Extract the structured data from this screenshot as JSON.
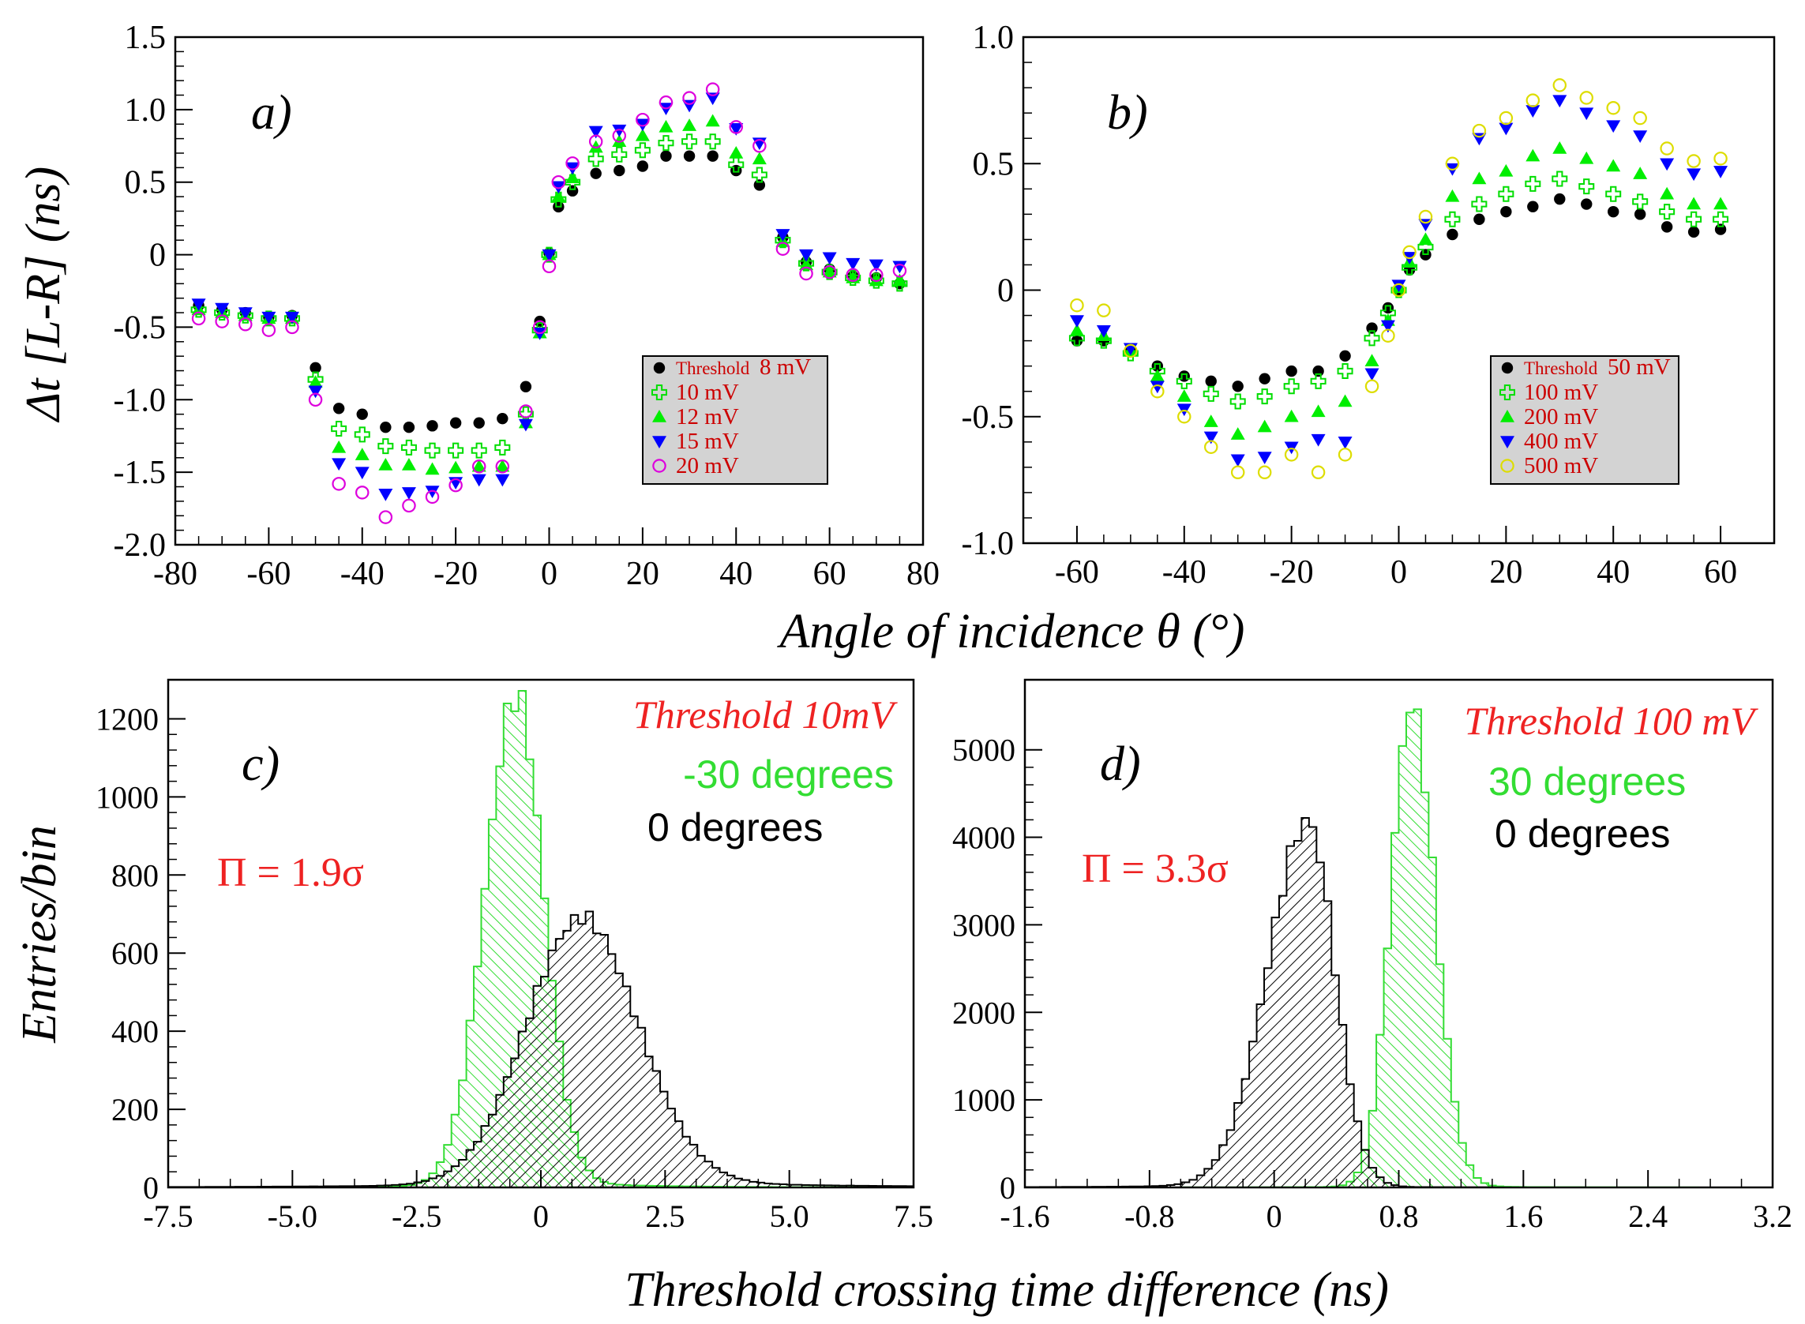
{
  "figure": {
    "xlabel_top": "Angle of incidence θ (°)",
    "ylabel_top": "Δt [L-R]  (ns)",
    "xlabel_bottom": "Threshold crossing time difference (ns)",
    "ylabel_bottom": "Entries/bin"
  },
  "chart_data": [
    {
      "panel": "a)",
      "type": "scatter",
      "xlim": [
        -80,
        80
      ],
      "ylim": [
        -2.0,
        1.5
      ],
      "xticks": [
        -80,
        -60,
        -40,
        -20,
        0,
        20,
        40,
        60,
        80
      ],
      "yticks": [
        -2.0,
        -1.5,
        -1.0,
        -0.5,
        0,
        0.5,
        1.0,
        1.5
      ],
      "legend_title": "Threshold",
      "legend_placement": "bottom-right",
      "series": [
        {
          "name": "8 mV",
          "marker": "circle-filled",
          "color": "#000000",
          "x": [
            -75,
            -70,
            -65,
            -60,
            -55,
            -50,
            -45,
            -40,
            -35,
            -30,
            -25,
            -20,
            -15,
            -10,
            -5,
            -2,
            0,
            2,
            5,
            10,
            15,
            20,
            25,
            30,
            35,
            40,
            45,
            50,
            55,
            60,
            65,
            70,
            75
          ],
          "y": [
            -0.35,
            -0.38,
            -0.4,
            -0.43,
            -0.42,
            -0.78,
            -1.06,
            -1.1,
            -1.19,
            -1.19,
            -1.18,
            -1.16,
            -1.16,
            -1.13,
            -0.91,
            -0.46,
            0.01,
            0.33,
            0.44,
            0.56,
            0.58,
            0.61,
            0.68,
            0.68,
            0.68,
            0.58,
            0.48,
            0.12,
            -0.05,
            -0.1,
            -0.15,
            -0.16,
            -0.2
          ]
        },
        {
          "name": "10 mV",
          "marker": "plus-open",
          "color": "#00dd00",
          "x": [
            -75,
            -70,
            -65,
            -60,
            -55,
            -50,
            -45,
            -40,
            -35,
            -30,
            -25,
            -20,
            -15,
            -10,
            -5,
            -2,
            0,
            2,
            5,
            10,
            15,
            20,
            25,
            30,
            35,
            40,
            45,
            50,
            55,
            60,
            65,
            70,
            75
          ],
          "y": [
            -0.38,
            -0.4,
            -0.42,
            -0.44,
            -0.44,
            -0.86,
            -1.2,
            -1.24,
            -1.32,
            -1.33,
            -1.35,
            -1.35,
            -1.35,
            -1.33,
            -1.1,
            -0.52,
            0.0,
            0.38,
            0.5,
            0.66,
            0.69,
            0.72,
            0.77,
            0.78,
            0.78,
            0.62,
            0.55,
            0.1,
            -0.06,
            -0.12,
            -0.16,
            -0.18,
            -0.2
          ]
        },
        {
          "name": "12 mV",
          "marker": "triangle-up",
          "color": "#00ee00",
          "x": [
            -75,
            -70,
            -65,
            -60,
            -55,
            -50,
            -45,
            -40,
            -35,
            -30,
            -25,
            -20,
            -15,
            -10,
            -5,
            -2,
            0,
            2,
            5,
            10,
            15,
            20,
            25,
            30,
            35,
            40,
            45,
            50,
            55,
            60,
            65,
            70,
            75
          ],
          "y": [
            -0.38,
            -0.4,
            -0.42,
            -0.44,
            -0.44,
            -0.88,
            -1.33,
            -1.38,
            -1.45,
            -1.45,
            -1.48,
            -1.47,
            -1.46,
            -1.46,
            -1.16,
            -0.54,
            0.0,
            0.4,
            0.53,
            0.74,
            0.78,
            0.82,
            0.88,
            0.89,
            0.92,
            0.7,
            0.66,
            0.09,
            -0.07,
            -0.12,
            -0.16,
            -0.18,
            -0.18
          ]
        },
        {
          "name": "15 mV",
          "marker": "triangle-down",
          "color": "#0000ff",
          "x": [
            -75,
            -70,
            -65,
            -60,
            -55,
            -50,
            -45,
            -40,
            -35,
            -30,
            -25,
            -20,
            -15,
            -10,
            -5,
            -2,
            0,
            2,
            5,
            10,
            15,
            20,
            25,
            30,
            35,
            40,
            45,
            50,
            55,
            60,
            65,
            70,
            75
          ],
          "y": [
            -0.34,
            -0.37,
            -0.4,
            -0.43,
            -0.43,
            -0.94,
            -1.44,
            -1.5,
            -1.65,
            -1.64,
            -1.63,
            -1.57,
            -1.55,
            -1.55,
            -1.17,
            -0.54,
            0.0,
            0.47,
            0.6,
            0.85,
            0.86,
            0.9,
            1.01,
            1.03,
            1.08,
            0.87,
            0.77,
            0.14,
            0.0,
            -0.02,
            -0.06,
            -0.07,
            -0.08
          ]
        },
        {
          "name": "20 mV",
          "marker": "circle-open",
          "color": "#dd00dd",
          "x": [
            -75,
            -70,
            -65,
            -60,
            -55,
            -50,
            -45,
            -40,
            -35,
            -30,
            -25,
            -20,
            -15,
            -10,
            -5,
            -2,
            0,
            2,
            5,
            10,
            15,
            20,
            25,
            30,
            35,
            40,
            45,
            50,
            55,
            60,
            65,
            70,
            75
          ],
          "y": [
            -0.44,
            -0.46,
            -0.48,
            -0.52,
            -0.5,
            -1.0,
            -1.58,
            -1.64,
            -1.81,
            -1.73,
            -1.67,
            -1.59,
            -1.46,
            -1.46,
            -1.08,
            -0.5,
            -0.08,
            0.5,
            0.63,
            0.78,
            0.82,
            0.93,
            1.05,
            1.08,
            1.14,
            0.88,
            0.75,
            0.04,
            -0.13,
            -0.12,
            -0.14,
            -0.14,
            -0.11
          ]
        }
      ]
    },
    {
      "panel": "b)",
      "type": "scatter",
      "xlim": [
        -70,
        70
      ],
      "ylim": [
        -1.0,
        1.0
      ],
      "xticks": [
        -60,
        -40,
        -20,
        0,
        20,
        40,
        60
      ],
      "yticks": [
        -1.0,
        -0.5,
        0,
        0.5,
        1.0
      ],
      "legend_title": "Threshold",
      "legend_placement": "bottom-right",
      "series": [
        {
          "name": "50 mV",
          "marker": "circle-filled",
          "color": "#000000",
          "x": [
            -60,
            -55,
            -50,
            -45,
            -40,
            -35,
            -30,
            -25,
            -20,
            -15,
            -10,
            -5,
            -2,
            0,
            2,
            5,
            10,
            15,
            20,
            25,
            30,
            35,
            40,
            45,
            50,
            55,
            60
          ],
          "y": [
            -0.2,
            -0.2,
            -0.24,
            -0.3,
            -0.34,
            -0.36,
            -0.38,
            -0.35,
            -0.32,
            -0.32,
            -0.26,
            -0.15,
            -0.07,
            0.0,
            0.08,
            0.14,
            0.22,
            0.28,
            0.31,
            0.33,
            0.36,
            0.34,
            0.31,
            0.3,
            0.25,
            0.23,
            0.24
          ]
        },
        {
          "name": "100 mV",
          "marker": "plus-open",
          "color": "#00dd00",
          "x": [
            -60,
            -55,
            -50,
            -45,
            -40,
            -35,
            -30,
            -25,
            -20,
            -15,
            -10,
            -5,
            -2,
            0,
            2,
            5,
            10,
            15,
            20,
            25,
            30,
            35,
            40,
            45,
            50,
            55,
            60
          ],
          "y": [
            -0.19,
            -0.2,
            -0.25,
            -0.32,
            -0.36,
            -0.41,
            -0.44,
            -0.42,
            -0.38,
            -0.36,
            -0.32,
            -0.19,
            -0.09,
            0.0,
            0.09,
            0.17,
            0.28,
            0.34,
            0.38,
            0.42,
            0.44,
            0.41,
            0.38,
            0.35,
            0.31,
            0.28,
            0.28
          ]
        },
        {
          "name": "200 mV",
          "marker": "triangle-up",
          "color": "#00ee00",
          "x": [
            -60,
            -55,
            -50,
            -45,
            -40,
            -35,
            -30,
            -25,
            -20,
            -15,
            -10,
            -5,
            -2,
            0,
            2,
            5,
            10,
            15,
            20,
            25,
            30,
            35,
            40,
            45,
            50,
            55,
            60
          ],
          "y": [
            -0.16,
            -0.18,
            -0.24,
            -0.34,
            -0.42,
            -0.52,
            -0.57,
            -0.54,
            -0.5,
            -0.48,
            -0.44,
            -0.28,
            -0.12,
            0.01,
            0.11,
            0.2,
            0.37,
            0.44,
            0.47,
            0.53,
            0.56,
            0.52,
            0.49,
            0.46,
            0.38,
            0.34,
            0.34
          ]
        },
        {
          "name": "400 mV",
          "marker": "triangle-down",
          "color": "#0000ff",
          "x": [
            -60,
            -55,
            -50,
            -45,
            -40,
            -35,
            -30,
            -25,
            -20,
            -15,
            -10,
            -5,
            -2,
            0,
            2,
            5,
            10,
            15,
            20,
            25,
            30,
            35,
            40,
            45,
            50,
            55,
            60
          ],
          "y": [
            -0.12,
            -0.16,
            -0.23,
            -0.38,
            -0.47,
            -0.58,
            -0.67,
            -0.66,
            -0.62,
            -0.59,
            -0.6,
            -0.33,
            -0.14,
            0.02,
            0.13,
            0.26,
            0.48,
            0.6,
            0.64,
            0.71,
            0.75,
            0.7,
            0.65,
            0.61,
            0.5,
            0.46,
            0.47
          ]
        },
        {
          "name": "500 mV",
          "marker": "circle-open",
          "color": "#dddd00",
          "x": [
            -60,
            -55,
            -50,
            -45,
            -40,
            -35,
            -30,
            -25,
            -20,
            -15,
            -10,
            -5,
            -2,
            0,
            2,
            5,
            10,
            15,
            20,
            25,
            30,
            35,
            40,
            45,
            50,
            55,
            60
          ],
          "y": [
            -0.06,
            -0.08,
            -0.24,
            -0.4,
            -0.5,
            -0.62,
            -0.72,
            -0.72,
            -0.65,
            -0.72,
            -0.65,
            -0.38,
            -0.18,
            0.0,
            0.15,
            0.29,
            0.5,
            0.63,
            0.68,
            0.75,
            0.81,
            0.76,
            0.72,
            0.68,
            0.56,
            0.51,
            0.52
          ]
        }
      ]
    },
    {
      "panel": "c)",
      "type": "histogram",
      "xlim": [
        -7.5,
        7.5
      ],
      "ylim": [
        0,
        1300
      ],
      "xticks": [
        -7.5,
        -5.0,
        -2.5,
        0,
        2.5,
        5.0,
        7.5
      ],
      "yticks": [
        0,
        200,
        400,
        600,
        800,
        1000,
        1200
      ],
      "threshold": "Threshold 10mV",
      "separation": "Π = 1.9σ",
      "series": [
        {
          "name": "-30 degrees",
          "color": "#33dd33",
          "peak_x": -0.5,
          "peak_y": 1250,
          "sigma_left": 0.62,
          "sigma_right": 0.55,
          "tail_left": 8,
          "tail_right": 20
        },
        {
          "name": "0 degrees",
          "color": "#000000",
          "peak_x": 0.8,
          "peak_y": 675,
          "sigma_left": 1.1,
          "sigma_right": 1.15,
          "tail_left": 12,
          "tail_right": 20
        }
      ]
    },
    {
      "panel": "d)",
      "type": "histogram",
      "xlim": [
        -1.6,
        3.2
      ],
      "ylim": [
        0,
        5800
      ],
      "xticks": [
        -1.6,
        -0.8,
        0,
        0.8,
        1.6,
        2.4,
        3.2
      ],
      "yticks": [
        0,
        1000,
        2000,
        3000,
        4000,
        5000
      ],
      "threshold": "Threshold 100 mV",
      "separation": "Π = 3.3σ",
      "series": [
        {
          "name": "30 degrees",
          "color": "#33dd33",
          "peak_x": 0.88,
          "peak_y": 5500,
          "sigma_left": 0.13,
          "sigma_right": 0.15,
          "tail_left": 20,
          "tail_right": 25
        },
        {
          "name": "0 degrees",
          "color": "#000000",
          "peak_x": 0.22,
          "peak_y": 4150,
          "sigma_left": 0.26,
          "sigma_right": 0.17,
          "tail_left": 40,
          "tail_right": 15
        }
      ]
    }
  ]
}
